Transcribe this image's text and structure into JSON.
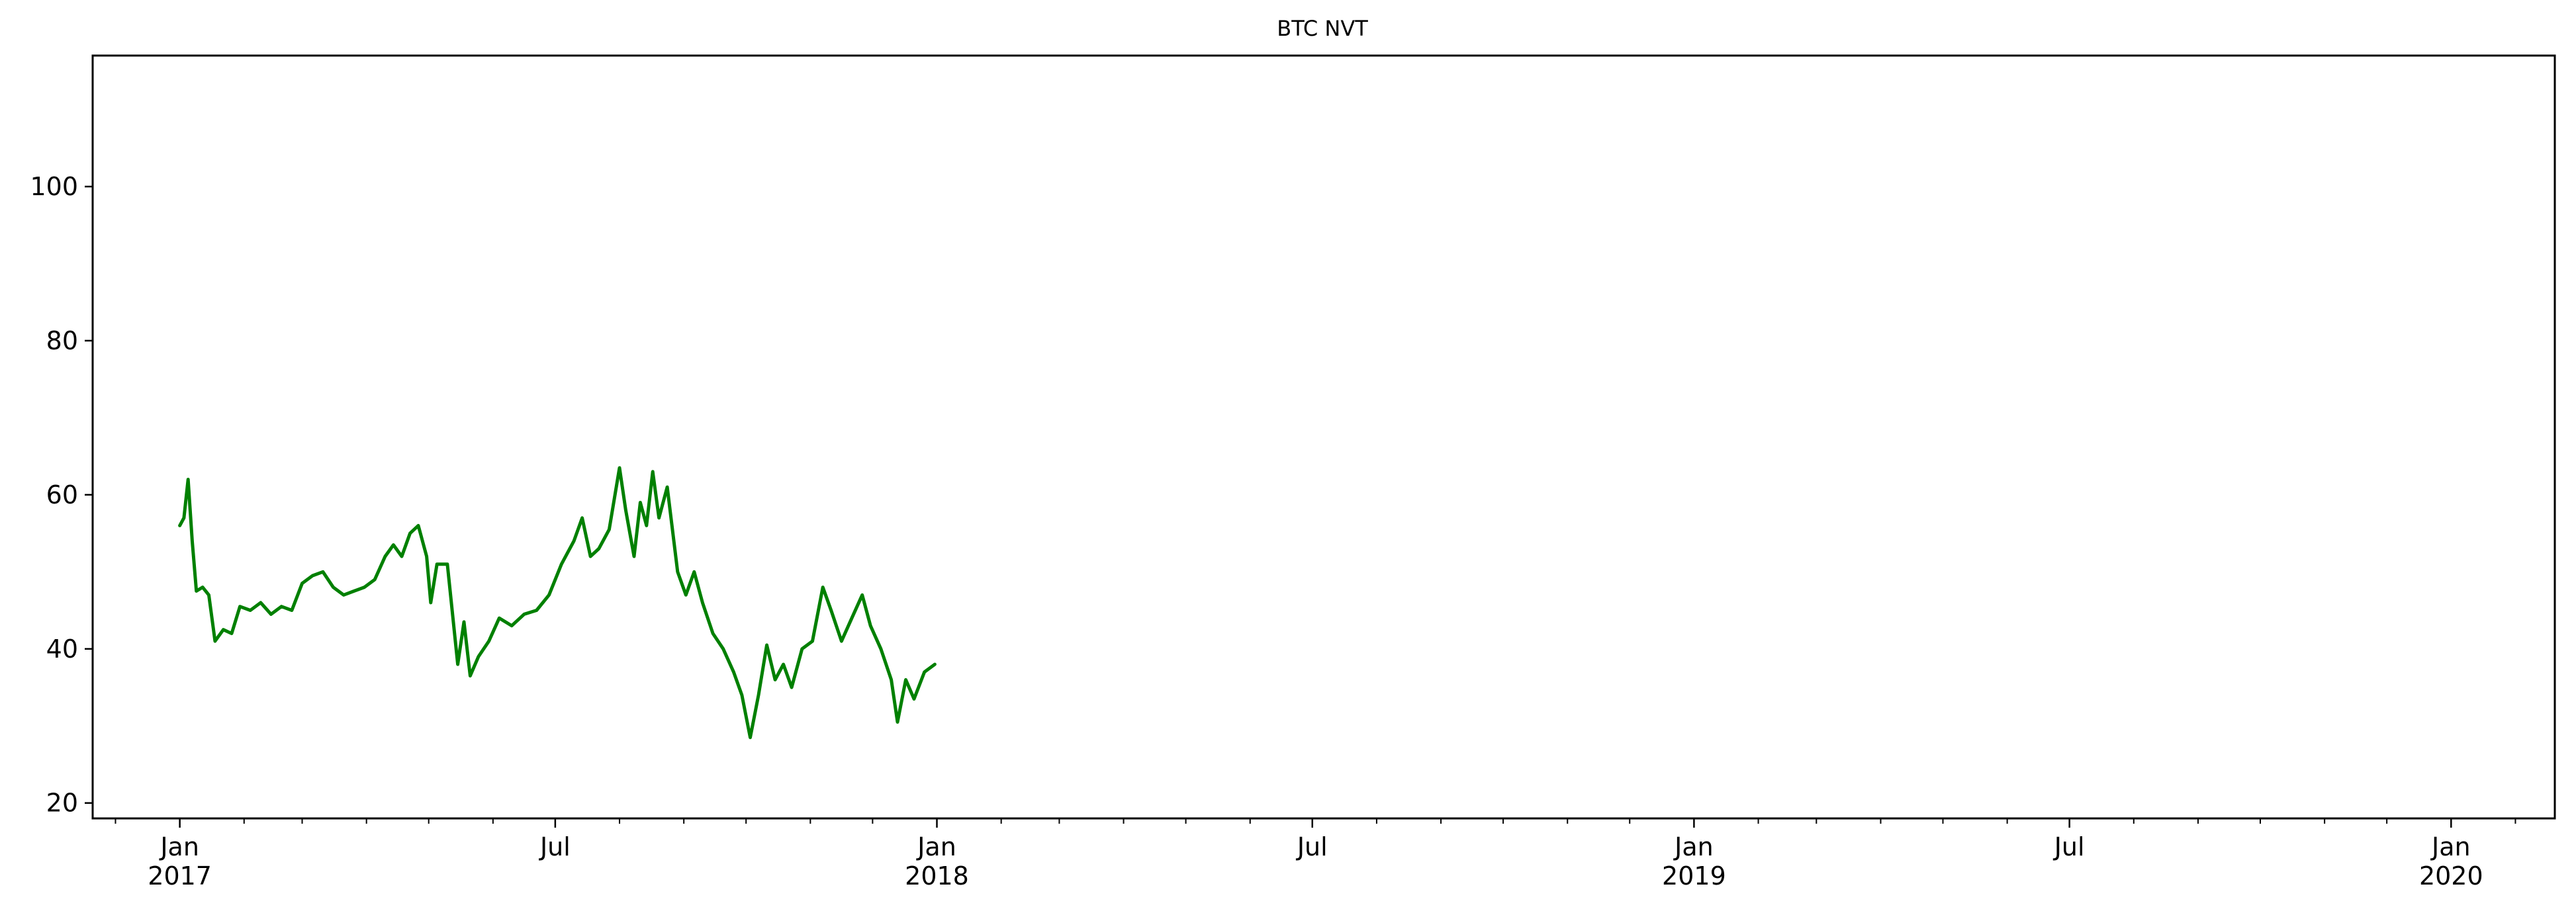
{
  "chart_data": {
    "type": "line",
    "title": "BTC NVT",
    "xlabel": "",
    "ylabel": "",
    "grid": false,
    "legend": "none",
    "ylim": [
      18,
      117
    ],
    "xlim": [
      "2016-11-20",
      "2020-02-20"
    ],
    "yticks": [
      20,
      40,
      60,
      80,
      100
    ],
    "xticks": [
      {
        "date": "2017-01-01",
        "label": [
          "Jan",
          "2017"
        ]
      },
      {
        "date": "2017-07-01",
        "label": [
          "Jul",
          ""
        ]
      },
      {
        "date": "2018-01-01",
        "label": [
          "Jan",
          "2018"
        ]
      },
      {
        "date": "2018-07-01",
        "label": [
          "Jul",
          ""
        ]
      },
      {
        "date": "2019-01-01",
        "label": [
          "Jan",
          "2019"
        ]
      },
      {
        "date": "2019-07-01",
        "label": [
          "Jul",
          ""
        ]
      },
      {
        "date": "2020-01-01",
        "label": [
          "Jan",
          "2020"
        ]
      }
    ],
    "minor_xticks": [
      "2016-12-01",
      "2017-02-01",
      "2017-03-01",
      "2017-04-01",
      "2017-05-01",
      "2017-06-01",
      "2017-08-01",
      "2017-09-01",
      "2017-10-01",
      "2017-11-01",
      "2017-12-01",
      "2018-02-01",
      "2018-03-01",
      "2018-04-01",
      "2018-05-01",
      "2018-06-01",
      "2018-08-01",
      "2018-09-01",
      "2018-10-01",
      "2018-11-01",
      "2018-12-01",
      "2019-02-01",
      "2019-03-01",
      "2019-04-01",
      "2019-05-01",
      "2019-06-01",
      "2019-08-01",
      "2019-09-01",
      "2019-10-01",
      "2019-11-01",
      "2019-12-01",
      "2020-02-01"
    ],
    "series": [
      {
        "color": "#008000",
        "points": [
          [
            "2017-01-01",
            56
          ],
          [
            "2017-01-03",
            57
          ],
          [
            "2017-01-05",
            62
          ],
          [
            "2017-01-07",
            54
          ],
          [
            "2017-01-09",
            47.5
          ],
          [
            "2017-01-12",
            48
          ],
          [
            "2017-01-15",
            47
          ],
          [
            "2017-01-18",
            41
          ],
          [
            "2017-01-22",
            42.5
          ],
          [
            "2017-01-26",
            42
          ],
          [
            "2017-01-30",
            45.5
          ],
          [
            "2017-02-04",
            45
          ],
          [
            "2017-02-09",
            46
          ],
          [
            "2017-02-14",
            44.5
          ],
          [
            "2017-02-19",
            45.5
          ],
          [
            "2017-02-24",
            45
          ],
          [
            "2017-03-01",
            48.5
          ],
          [
            "2017-03-06",
            49.5
          ],
          [
            "2017-03-11",
            50
          ],
          [
            "2017-03-16",
            48
          ],
          [
            "2017-03-21",
            47
          ],
          [
            "2017-03-26",
            47.5
          ],
          [
            "2017-03-31",
            48
          ],
          [
            "2017-04-05",
            49
          ],
          [
            "2017-04-10",
            52
          ],
          [
            "2017-04-14",
            53.5
          ],
          [
            "2017-04-18",
            52
          ],
          [
            "2017-04-22",
            55
          ],
          [
            "2017-04-26",
            56
          ],
          [
            "2017-04-30",
            52
          ],
          [
            "2017-05-02",
            46
          ],
          [
            "2017-05-05",
            51
          ],
          [
            "2017-05-10",
            51
          ],
          [
            "2017-05-15",
            38
          ],
          [
            "2017-05-18",
            43.5
          ],
          [
            "2017-05-21",
            36.5
          ],
          [
            "2017-05-25",
            39
          ],
          [
            "2017-05-30",
            41
          ],
          [
            "2017-06-04",
            44
          ],
          [
            "2017-06-10",
            43
          ],
          [
            "2017-06-16",
            44.5
          ],
          [
            "2017-06-22",
            45
          ],
          [
            "2017-06-28",
            47
          ],
          [
            "2017-07-04",
            51
          ],
          [
            "2017-07-10",
            54
          ],
          [
            "2017-07-14",
            57
          ],
          [
            "2017-07-18",
            52
          ],
          [
            "2017-07-22",
            53
          ],
          [
            "2017-07-27",
            55.5
          ],
          [
            "2017-08-01",
            63.5
          ],
          [
            "2017-08-04",
            58
          ],
          [
            "2017-08-08",
            52
          ],
          [
            "2017-08-11",
            59
          ],
          [
            "2017-08-14",
            56
          ],
          [
            "2017-08-17",
            63
          ],
          [
            "2017-08-20",
            57
          ],
          [
            "2017-08-24",
            61
          ],
          [
            "2017-08-29",
            50
          ],
          [
            "2017-09-02",
            47
          ],
          [
            "2017-09-06",
            50
          ],
          [
            "2017-09-10",
            46
          ],
          [
            "2017-09-15",
            42
          ],
          [
            "2017-09-20",
            40
          ],
          [
            "2017-09-25",
            37
          ],
          [
            "2017-09-29",
            34
          ],
          [
            "2017-10-03",
            28.5
          ],
          [
            "2017-10-07",
            34
          ],
          [
            "2017-10-11",
            40.5
          ],
          [
            "2017-10-15",
            36
          ],
          [
            "2017-10-19",
            38
          ],
          [
            "2017-10-23",
            35
          ],
          [
            "2017-10-28",
            40
          ],
          [
            "2017-11-02",
            41
          ],
          [
            "2017-11-07",
            48
          ],
          [
            "2017-11-11",
            45
          ],
          [
            "2017-11-16",
            41
          ],
          [
            "2017-11-21",
            44
          ],
          [
            "2017-11-26",
            47
          ],
          [
            "2017-11-30",
            43
          ],
          [
            "2017-12-05",
            40
          ],
          [
            "2017-12-10",
            36
          ],
          [
            "2017-12-13",
            30.5
          ],
          [
            "2017-12-17",
            36
          ],
          [
            "2017-12-21",
            33.5
          ],
          [
            "2017-12-26",
            37
          ],
          [
            "2017-12-31",
            38
          ]
        ]
      }
    ]
  }
}
